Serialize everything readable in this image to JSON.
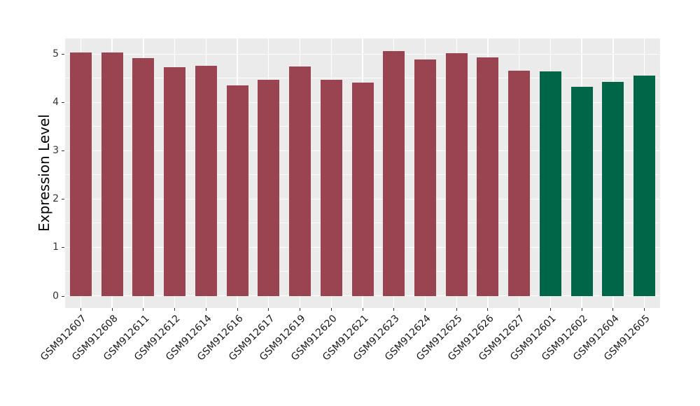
{
  "chart_data": {
    "type": "bar",
    "title": "",
    "xlabel": "",
    "ylabel": "Expression Level",
    "categories": [
      "GSM912607",
      "GSM912608",
      "GSM912611",
      "GSM912612",
      "GSM912614",
      "GSM912616",
      "GSM912617",
      "GSM912619",
      "GSM912620",
      "GSM912621",
      "GSM912623",
      "GSM912624",
      "GSM912625",
      "GSM912626",
      "GSM912627",
      "GSM912601",
      "GSM912602",
      "GSM912604",
      "GSM912605"
    ],
    "values": [
      5.03,
      5.03,
      4.92,
      4.73,
      4.76,
      4.35,
      4.47,
      4.74,
      4.47,
      4.41,
      5.07,
      4.89,
      5.02,
      4.93,
      4.66,
      4.65,
      4.33,
      4.42,
      4.56
    ],
    "bar_colors": [
      "#9A4452",
      "#9A4452",
      "#9A4452",
      "#9A4452",
      "#9A4452",
      "#9A4452",
      "#9A4452",
      "#9A4452",
      "#9A4452",
      "#9A4452",
      "#9A4452",
      "#9A4452",
      "#9A4452",
      "#9A4452",
      "#9A4452",
      "#016648",
      "#016648",
      "#016648",
      "#016648"
    ],
    "y_axis": {
      "ticks": [
        "0",
        "1",
        "2",
        "3",
        "4",
        "5"
      ],
      "tick_values": [
        0,
        1,
        2,
        3,
        4,
        5
      ],
      "minor_tick_values": [
        0.5,
        1.5,
        2.5,
        3.5,
        4.5
      ],
      "range": [
        0,
        5.35
      ]
    },
    "x_tick_angle_degrees": 45,
    "grid": true,
    "legend": "none",
    "colors": {
      "panel_background": "#EBEBEB",
      "gridline": "#FFFFFF",
      "axis_text": "#333333",
      "x_label_text": "#1A1A1A",
      "tick_mark": "#333333",
      "bar_group_red": "#9A4452",
      "bar_group_green": "#016648",
      "page_background": "#FFFFFF"
    }
  }
}
